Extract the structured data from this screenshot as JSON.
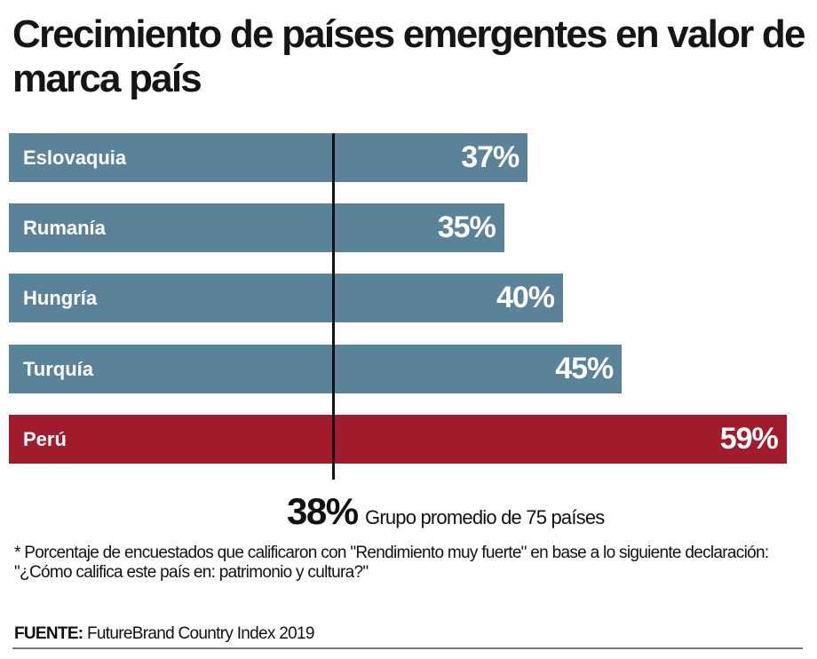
{
  "chart_data": {
    "type": "bar",
    "orientation": "horizontal",
    "title": "Crecimiento de países emergentes en valor de marca país",
    "categories": [
      "Eslovaquia",
      "Rumanía",
      "Hungría",
      "Turquía",
      "Perú"
    ],
    "values": [
      37,
      35,
      40,
      45,
      59
    ],
    "value_labels": [
      "37%",
      "35%",
      "40%",
      "45%",
      "59%"
    ],
    "colors": [
      "#5a8299",
      "#5a8299",
      "#5a8299",
      "#5a8299",
      "#a01c2c"
    ],
    "reference_line": {
      "value": 38,
      "value_label": "38%",
      "label": "Grupo promedio de 75 países"
    },
    "note": "* Porcentaje de encuestados que calificaron con \"Rendimiento muy fuerte\" en base a lo siguiente declaración: \"¿Cómo califica este país en: patrimonio y cultura?\"",
    "source_label": "FUENTE:",
    "source": "FutureBrand Country Index 2019",
    "grid": false,
    "legend": "none"
  }
}
